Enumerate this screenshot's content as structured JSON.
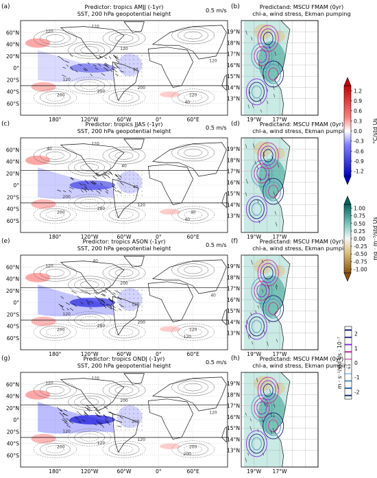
{
  "chart_data": [
    {
      "type": "heatmap",
      "panel": "(a)",
      "title": [
        "Predictor: tropics AMJJ (-1yr)",
        "SST, 200 hPa geopotential height"
      ],
      "vector_scale": "0.5 m/s",
      "x_ticks": [
        "180°",
        "120°W",
        "60°W",
        "0°",
        "60°E"
      ],
      "y_ticks": [
        "60°N",
        "40°N",
        "20°N",
        "0°",
        "20°S",
        "40°S",
        "60°S"
      ],
      "contour_labels": [
        "120",
        "120",
        "120",
        "40",
        "120",
        "200",
        "200",
        "120",
        "200",
        "40",
        "120"
      ]
    },
    {
      "type": "heatmap",
      "panel": "(c)",
      "title": [
        "Predictor: tropics JJAS (-1yr)",
        "SST, 200 hPa geopotential height"
      ],
      "vector_scale": "0.5 m/s",
      "x_ticks": [
        "180°",
        "120°W",
        "60°W",
        "0°",
        "60°E"
      ],
      "y_ticks": [
        "60°N",
        "40°N",
        "20°N",
        "0°",
        "20°S",
        "40°S",
        "60°S"
      ],
      "contour_labels": [
        "40",
        "40",
        "120",
        "40",
        "200",
        "200",
        "280",
        "40",
        "120",
        "40"
      ]
    },
    {
      "type": "heatmap",
      "panel": "(e)",
      "title": [
        "Predictor: tropics ASON (-1yr)",
        "SST, 200 hPa geopotential height"
      ],
      "vector_scale": "0.5 m/s",
      "x_ticks": [
        "180°",
        "120°W",
        "60°W",
        "0°",
        "60°E"
      ],
      "y_ticks": [
        "60°N",
        "40°N",
        "20°N",
        "0°",
        "20°S",
        "40°S",
        "60°S"
      ],
      "contour_labels": [
        "120",
        "200",
        "40",
        "120",
        "120",
        "200",
        "280",
        "120",
        "200",
        "120",
        "40"
      ]
    },
    {
      "type": "heatmap",
      "panel": "(g)",
      "title": [
        "Predictor: tropics ONDJ (-1yr)",
        "SST, 200 hPa geopotential height"
      ],
      "vector_scale": "0.5 m/s",
      "x_ticks": [
        "180°",
        "120°W",
        "60°W",
        "0°",
        "60°E"
      ],
      "y_ticks": [
        "60°N",
        "40°N",
        "20°N",
        "0°",
        "20°S",
        "40°S",
        "60°S"
      ],
      "contour_labels": [
        "120",
        "200",
        "120",
        "200",
        "120",
        "200",
        "120",
        "200",
        "120",
        "200",
        "120"
      ]
    },
    {
      "type": "heatmap",
      "panel": "(b)",
      "title": [
        "Predictand: MSCU FMAM (0yr)",
        "chl-a, wind stress, Ekman pumping"
      ],
      "x_ticks": [
        "19°W",
        "17°W"
      ],
      "y_ticks": [
        "19°N",
        "18°N",
        "17°N",
        "16°N",
        "15°N",
        "14°N",
        "13°N"
      ]
    },
    {
      "type": "heatmap",
      "panel": "(d)",
      "title": [
        "Predictand: MSCU FMAM (0yr)",
        "chl-a, wind stress, Ekman pumping"
      ],
      "x_ticks": [
        "19°W",
        "17°W"
      ],
      "y_ticks": [
        "19°N",
        "18°N",
        "17°N",
        "16°N",
        "15°N",
        "14°N",
        "13°N"
      ]
    },
    {
      "type": "heatmap",
      "panel": "(f)",
      "title": [
        "Predictand: MSCU FMAM (0yr)",
        "chl-a, wind stress, Ekman pumping"
      ],
      "x_ticks": [
        "19°W",
        "17°W"
      ],
      "y_ticks": [
        "19°N",
        "18°N",
        "17°N",
        "16°N",
        "15°N",
        "14°N",
        "13°N"
      ]
    },
    {
      "type": "heatmap",
      "panel": "(h)",
      "title": [
        "Predictand: MSCU FMAM (0yr)",
        "chl-a, wind stress, Ekman pumping"
      ],
      "x_ticks": [
        "19°W",
        "17°W"
      ],
      "y_ticks": [
        "19°N",
        "18°N",
        "17°N",
        "16°N",
        "15°N",
        "14°N",
        "13°N"
      ]
    }
  ],
  "colorbars": [
    {
      "label": "°C/std Us",
      "ticks": [
        "1.2",
        "0.9",
        "0.6",
        "0.3",
        "0.0",
        "-0.3",
        "-0.6",
        "-0.9",
        "-1.2"
      ],
      "range": [
        -1.2,
        1.2
      ],
      "colors": [
        "#0000cc",
        "#ffffff",
        "#cc0000"
      ]
    },
    {
      "label": "mg · m⁻³/std Us",
      "ticks": [
        "1.00",
        "0.75",
        "0.50",
        "0.25",
        "0.00",
        "-0.25",
        "-0.50",
        "-0.75",
        "-1.00"
      ],
      "range": [
        -1.0,
        1.0
      ],
      "colors": [
        "#8c510a",
        "#f6f6f6",
        "#01665e"
      ]
    },
    {
      "label": "m · s⁻¹/std Us · 10⁻⁷",
      "ticks": [
        "2",
        "1",
        "0",
        "-1",
        "-2"
      ],
      "range": [
        -2,
        2
      ],
      "colors": [
        "#1a1a7a",
        "#3030a0",
        "#8a2be2",
        "#c0309a",
        "#e080c0",
        "#ffffff",
        "#a0c8e8",
        "#5090c8",
        "#2060a8",
        "#103070"
      ]
    }
  ]
}
